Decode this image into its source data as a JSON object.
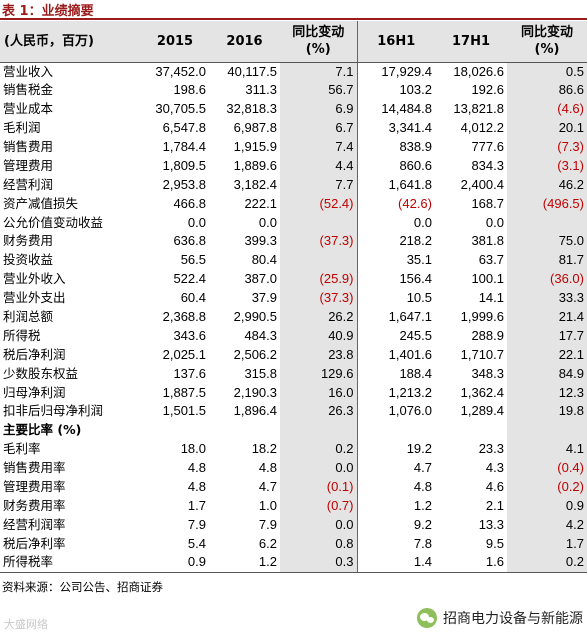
{
  "title": "表 1：业绩摘要",
  "colors": {
    "accent": "#9b1c1c",
    "negative": "#c00000",
    "shade": "#e4e4e4"
  },
  "header": [
    "(人民币，百万)",
    "2015",
    "2016",
    "同比变动 (%)",
    "16H1",
    "17H1",
    "同比变动 (%)"
  ],
  "rows": [
    {
      "label": "营业收入",
      "cells": [
        "37,452.0",
        "40,117.5",
        "7.1",
        "17,929.4",
        "18,026.6",
        "0.5"
      ]
    },
    {
      "label": "销售税金",
      "cells": [
        "198.6",
        "311.3",
        "56.7",
        "103.2",
        "192.6",
        "86.6"
      ]
    },
    {
      "label": "营业成本",
      "cells": [
        "30,705.5",
        "32,818.3",
        "6.9",
        "14,484.8",
        "13,821.8",
        "(4.6)"
      ]
    },
    {
      "label": "毛利润",
      "cells": [
        "6,547.8",
        "6,987.8",
        "6.7",
        "3,341.4",
        "4,012.2",
        "20.1"
      ]
    },
    {
      "label": "销售费用",
      "cells": [
        "1,784.4",
        "1,915.9",
        "7.4",
        "838.9",
        "777.6",
        "(7.3)"
      ]
    },
    {
      "label": "管理费用",
      "cells": [
        "1,809.5",
        "1,889.6",
        "4.4",
        "860.6",
        "834.3",
        "(3.1)"
      ]
    },
    {
      "label": "经营利润",
      "cells": [
        "2,953.8",
        "3,182.4",
        "7.7",
        "1,641.8",
        "2,400.4",
        "46.2"
      ]
    },
    {
      "label": "资产减值损失",
      "cells": [
        "466.8",
        "222.1",
        "(52.4)",
        "(42.6)",
        "168.7",
        "(496.5)"
      ]
    },
    {
      "label": "公允价值变动收益",
      "cells": [
        "0.0",
        "0.0",
        "",
        "0.0",
        "0.0",
        ""
      ]
    },
    {
      "label": "财务费用",
      "cells": [
        "636.8",
        "399.3",
        "(37.3)",
        "218.2",
        "381.8",
        "75.0"
      ]
    },
    {
      "label": "投资收益",
      "cells": [
        "56.5",
        "80.4",
        "",
        "35.1",
        "63.7",
        "81.7"
      ]
    },
    {
      "label": "营业外收入",
      "cells": [
        "522.4",
        "387.0",
        "(25.9)",
        "156.4",
        "100.1",
        "(36.0)"
      ]
    },
    {
      "label": "营业外支出",
      "cells": [
        "60.4",
        "37.9",
        "(37.3)",
        "10.5",
        "14.1",
        "33.3"
      ]
    },
    {
      "label": "利润总额",
      "cells": [
        "2,368.8",
        "2,990.5",
        "26.2",
        "1,647.1",
        "1,999.6",
        "21.4"
      ]
    },
    {
      "label": "所得税",
      "cells": [
        "343.6",
        "484.3",
        "40.9",
        "245.5",
        "288.9",
        "17.7"
      ]
    },
    {
      "label": "税后净利润",
      "cells": [
        "2,025.1",
        "2,506.2",
        "23.8",
        "1,401.6",
        "1,710.7",
        "22.1"
      ]
    },
    {
      "label": "少数股东权益",
      "cells": [
        "137.6",
        "315.8",
        "129.6",
        "188.4",
        "348.3",
        "84.9"
      ]
    },
    {
      "label": "归母净利润",
      "cells": [
        "1,887.5",
        "2,190.3",
        "16.0",
        "1,213.2",
        "1,362.4",
        "12.3"
      ]
    },
    {
      "label": "扣非后归母净利润",
      "cells": [
        "1,501.5",
        "1,896.4",
        "26.3",
        "1,076.0",
        "1,289.4",
        "19.8"
      ]
    },
    {
      "label": "主要比率 (%)",
      "section": true,
      "cells": [
        "",
        "",
        "",
        "",
        "",
        ""
      ]
    },
    {
      "label": "毛利率",
      "cells": [
        "18.0",
        "18.2",
        "0.2",
        "19.2",
        "23.3",
        "4.1"
      ]
    },
    {
      "label": "销售费用率",
      "cells": [
        "4.8",
        "4.8",
        "0.0",
        "4.7",
        "4.3",
        "(0.4)"
      ]
    },
    {
      "label": "管理费用率",
      "cells": [
        "4.8",
        "4.7",
        "(0.1)",
        "4.8",
        "4.6",
        "(0.2)"
      ]
    },
    {
      "label": "财务费用率",
      "cells": [
        "1.7",
        "1.0",
        "(0.7)",
        "1.2",
        "2.1",
        "0.9"
      ]
    },
    {
      "label": "经营利润率",
      "cells": [
        "7.9",
        "7.9",
        "0.0",
        "9.2",
        "13.3",
        "4.2"
      ]
    },
    {
      "label": "税后净利率",
      "cells": [
        "5.4",
        "6.2",
        "0.8",
        "7.8",
        "9.5",
        "1.7"
      ]
    },
    {
      "label": "所得税率",
      "cells": [
        "0.9",
        "1.2",
        "0.3",
        "1.4",
        "1.6",
        "0.2"
      ]
    }
  ],
  "footer": "资料来源：公司公告、招商证券",
  "watermark": {
    "left_text": "大盛网络",
    "right_text": "招商电力设备与新能源",
    "icon": "wechat-icon"
  }
}
